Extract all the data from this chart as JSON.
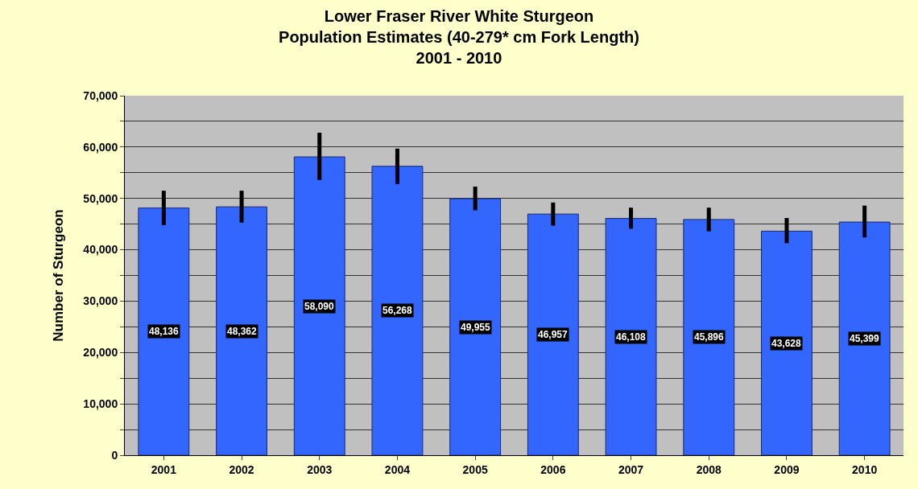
{
  "chart_data": {
    "type": "bar",
    "title": "Lower Fraser River White Sturgeon\nPopulation Estimates (40-279* cm Fork Length)\n2001 - 2010",
    "ylabel": "Number of Sturgeon",
    "categories": [
      "2001",
      "2002",
      "2003",
      "2004",
      "2005",
      "2006",
      "2007",
      "2008",
      "2009",
      "2010"
    ],
    "series": [
      {
        "color": "#3366ff",
        "values": [
          48136,
          48362,
          58090,
          56268,
          49955,
          46957,
          46108,
          45896,
          43628,
          45399
        ],
        "value_labels": [
          "48,136",
          "48,362",
          "58,090",
          "56,268",
          "49,955",
          "46,957",
          "46,108",
          "45,896",
          "43,628",
          "45,399"
        ],
        "errors": [
          [
            44800,
            51500
          ],
          [
            45300,
            51500
          ],
          [
            53600,
            62800
          ],
          [
            52800,
            59700
          ],
          [
            47700,
            52300
          ],
          [
            44700,
            49200
          ],
          [
            44100,
            48200
          ],
          [
            43600,
            48200
          ],
          [
            41300,
            46200
          ],
          [
            42400,
            48600
          ]
        ]
      }
    ],
    "ylim": [
      0,
      70000
    ],
    "yticks": [
      {
        "value": 0,
        "label": "0"
      },
      {
        "value": 5000,
        "label": null
      },
      {
        "value": 10000,
        "label": "10,000"
      },
      {
        "value": 15000,
        "label": null
      },
      {
        "value": 20000,
        "label": "20,000"
      },
      {
        "value": 25000,
        "label": null
      },
      {
        "value": 30000,
        "label": "30,000"
      },
      {
        "value": 35000,
        "label": null
      },
      {
        "value": 40000,
        "label": "40,000"
      },
      {
        "value": 45000,
        "label": null
      },
      {
        "value": 50000,
        "label": "50,000"
      },
      {
        "value": 55000,
        "label": null
      },
      {
        "value": 60000,
        "label": "60,000"
      },
      {
        "value": 65000,
        "label": null
      },
      {
        "value": 70000,
        "label": "70,000"
      }
    ],
    "grid": "y"
  }
}
